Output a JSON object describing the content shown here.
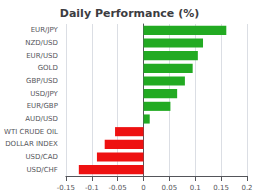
{
  "chart_data": {
    "type": "bar",
    "orientation": "horizontal",
    "title": "Daily Performance (%)",
    "categories": [
      "USD/CHF",
      "USD/CAD",
      "DOLLAR INDEX",
      "WTI CRUDE OIL",
      "AUD/USD",
      "EUR/GBP",
      "USD/JPY",
      "GBP/USD",
      "GOLD",
      "EUR/USD",
      "NZD/USD",
      "EUR/JPY"
    ],
    "values": [
      -0.125,
      -0.09,
      -0.075,
      -0.055,
      0.012,
      0.052,
      0.065,
      0.08,
      0.095,
      0.105,
      0.115,
      0.16
    ],
    "colors": [
      "#ee1111",
      "#ee1111",
      "#ee1111",
      "#ee1111",
      "#22aa22",
      "#22aa22",
      "#22aa22",
      "#22aa22",
      "#22aa22",
      "#22aa22",
      "#22aa22",
      "#22aa22"
    ],
    "xlim": [
      -0.15,
      0.2
    ],
    "xticks": [
      -0.15,
      -0.1,
      -0.05,
      0,
      0.05,
      0.1,
      0.15,
      0.2
    ],
    "grid": true
  }
}
